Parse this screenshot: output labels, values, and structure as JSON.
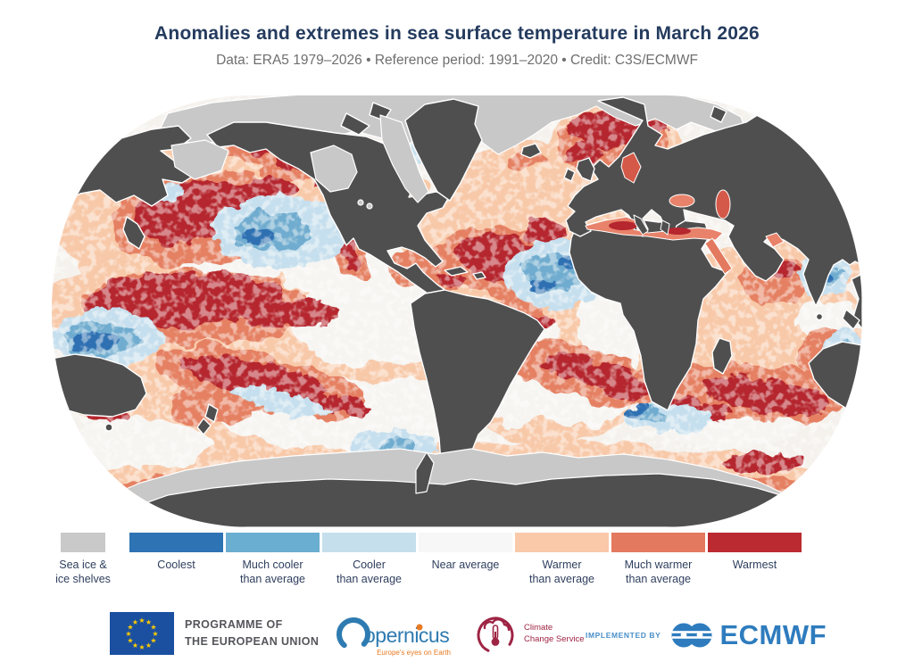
{
  "header": {
    "title": "Anomalies and extremes in sea surface temperature in March 2026",
    "subtitle": "Data: ERA5 1979–2026 • Reference period: 1991–2020 • Credit: C3S/ECMWF"
  },
  "map": {
    "description": "Robinson-projection world map of sea surface temperature anomaly categories for March 2026; land dark grey, polar sea ice light grey, oceans shaded by anomaly category",
    "palette": {
      "land": "#4f4f4f",
      "sea_ice": "#c8c8c8",
      "coastline": "#ffffff",
      "near_average": "#f6f4f1",
      "warmer": "#f8c9a9",
      "much_warmer": "#e58062",
      "warmest": "#b5262e",
      "cooler": "#c6dfee",
      "much_cooler": "#6faccf",
      "coolest": "#2d6fb2"
    }
  },
  "legend": {
    "items": [
      {
        "label": "Sea ice &\nice shelves",
        "color": "#c9c9c9"
      },
      {
        "label": "Coolest",
        "color": "#2e73b4"
      },
      {
        "label": "Much cooler\nthan average",
        "color": "#6aaed1"
      },
      {
        "label": "Cooler\nthan average",
        "color": "#c6dfec"
      },
      {
        "label": "Near average",
        "color": "#f7f7f7"
      },
      {
        "label": "Warmer\nthan average",
        "color": "#f9c9aa"
      },
      {
        "label": "Much warmer\nthan average",
        "color": "#e3795e"
      },
      {
        "label": "Warmest",
        "color": "#bb2a30"
      }
    ]
  },
  "footer": {
    "eu_programme": "PROGRAMME OF\nTHE EUROPEAN UNION",
    "copernicus_wordmark": "opernicus",
    "copernicus_tagline": "Europe's eyes on Earth",
    "climate_change_service": "Climate\nChange Service",
    "implemented_by": "IMPLEMENTED BY",
    "ecmwf": "ECMWF",
    "eu_blue": "#1b4fa0",
    "eu_star_yellow": "#ffcc00",
    "copernicus_blue": "#2e7bb1",
    "copernicus_orange": "#e87a22",
    "ccs_maroon": "#9e2444",
    "ecmwf_blue": "#2e7cbe"
  }
}
